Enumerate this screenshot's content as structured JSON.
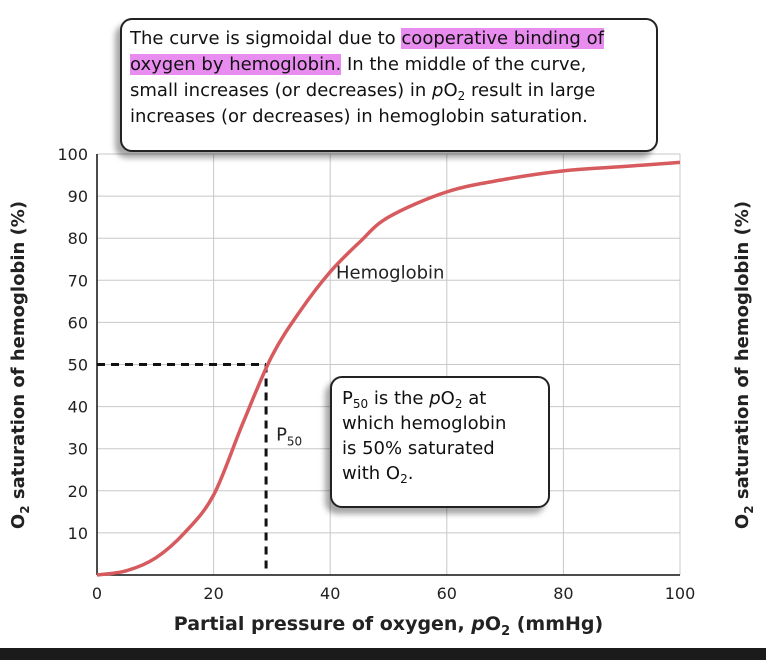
{
  "chart_data": {
    "type": "line",
    "x": [
      0,
      5,
      10,
      15,
      20,
      25,
      30,
      35,
      40,
      45,
      50,
      60,
      70,
      80,
      90,
      100
    ],
    "series": [
      {
        "name": "Hemoglobin",
        "color": "#d65a5e",
        "values": [
          0,
          1,
          4,
          10,
          19,
          36,
          52,
          63,
          72,
          79,
          85,
          91,
          94,
          96,
          97,
          98
        ]
      }
    ],
    "xlim": [
      0,
      100
    ],
    "ylim": [
      0,
      100
    ],
    "xticks": [
      0,
      20,
      40,
      60,
      80,
      100
    ],
    "yticks": [
      10,
      20,
      30,
      40,
      50,
      60,
      70,
      80,
      90,
      100
    ],
    "grid": true,
    "x_label": [
      "Partial pressure of oxygen, ",
      "p",
      "O",
      "2",
      " (mmHg)"
    ],
    "y_label": [
      "O",
      "2",
      " saturation of hemoglobin (%)"
    ],
    "p50_point": [
      29,
      50
    ],
    "p50_label": [
      "P",
      "50"
    ],
    "annotations": {
      "top": [
        [
          "The curve is sigmoidal due to ",
          "cooperative binding of"
        ],
        [
          "oxygen by hemoglobin.",
          " In the middle of the curve,"
        ],
        [
          "small increases (or decreases) in ",
          "p",
          "O",
          "2",
          " result in large"
        ],
        [
          "increases (or decreases) in hemoglobin saturation."
        ]
      ],
      "p50_note": [
        [
          "P",
          "50",
          " is the ",
          "p",
          "O",
          "2",
          " at"
        ],
        [
          "which hemoglobin"
        ],
        [
          "is 50% saturated"
        ],
        [
          "with O",
          "2",
          "."
        ]
      ]
    }
  }
}
